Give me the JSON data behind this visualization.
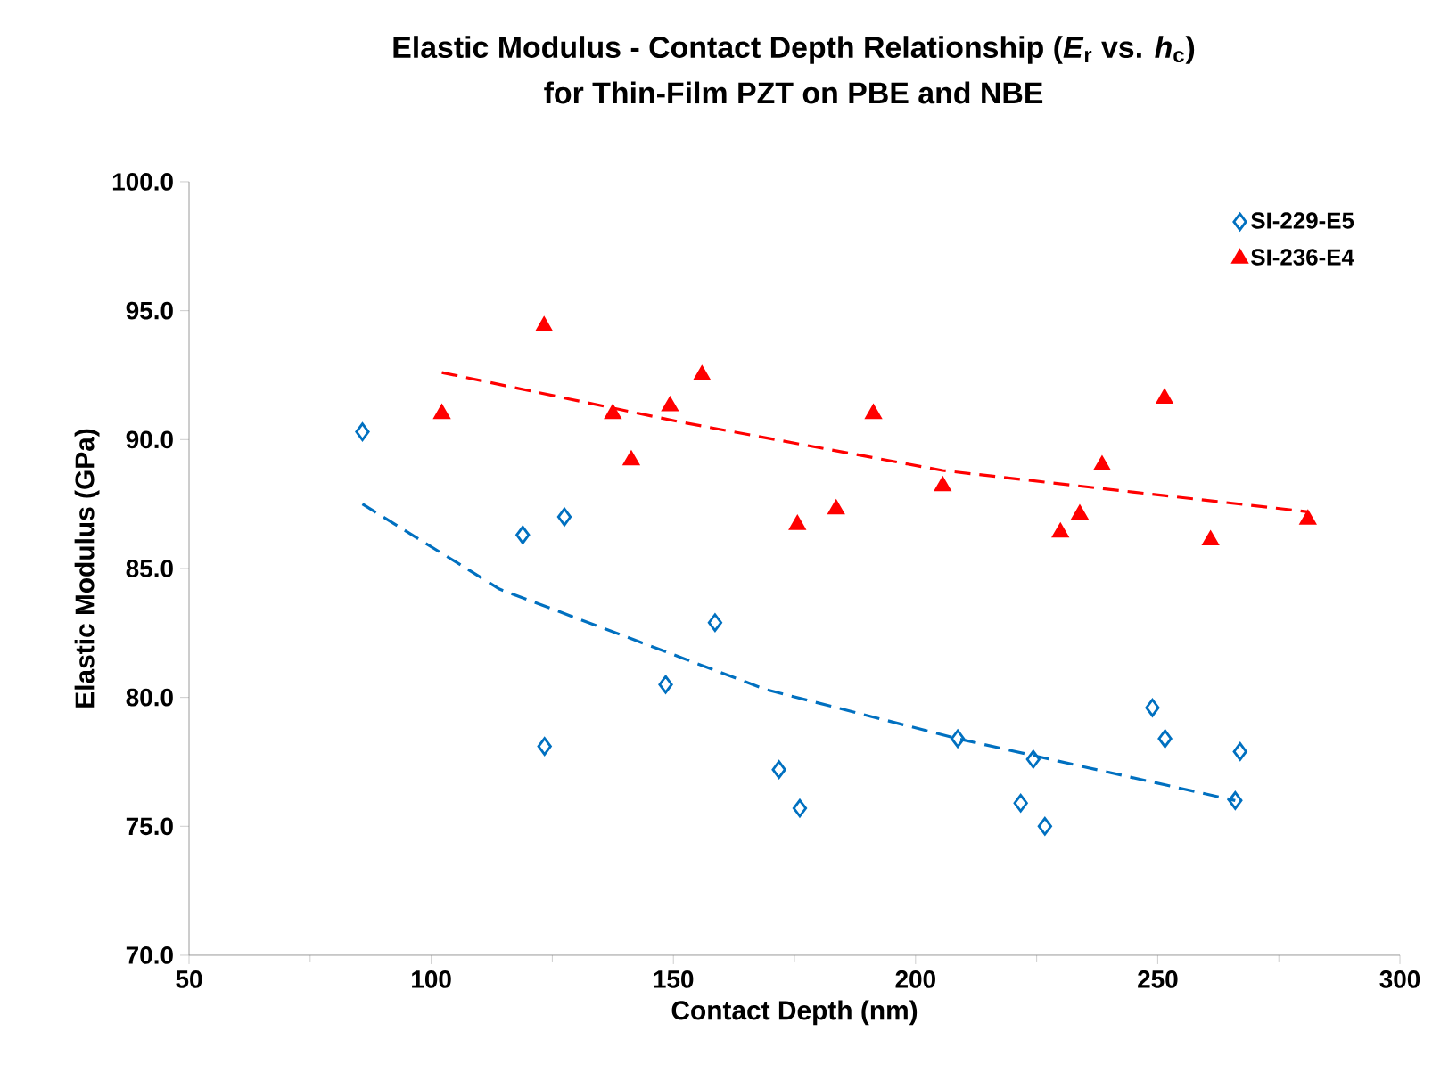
{
  "chart_data": {
    "type": "scatter",
    "title": "Elastic Modulus - Contact Depth Relationship (*E*$_{r}$ vs. *h*$_{c}$)",
    "subtitle": "for Thin-Film PZT on PBE and NBE",
    "xlabel": "Contact Depth (nm)",
    "ylabel": "Elastic Modulus (GPa)",
    "xlim": [
      50,
      300
    ],
    "xticks": [
      50,
      100,
      150,
      200,
      250,
      300
    ],
    "ylim": [
      70,
      100
    ],
    "yticks": [
      {
        "value": 70,
        "label": "70.0"
      },
      {
        "value": 75,
        "label": "75.0"
      },
      {
        "value": 80,
        "label": "80.0"
      },
      {
        "value": 85,
        "label": "85.0"
      },
      {
        "value": 90,
        "label": "90.0"
      },
      {
        "value": 95,
        "label": "95.0"
      },
      {
        "value": 100,
        "label": "100.0"
      }
    ],
    "grid": false,
    "legend": "top right",
    "series": [
      {
        "name": "SI-229-E5",
        "color": "#0070c0",
        "marker": "diamond",
        "x": [
          85.8,
          118.9,
          127.5,
          123.4,
          158.6,
          148.4,
          171.8,
          176.1,
          208.7,
          221.7,
          224.3,
          226.7,
          248.9,
          251.5,
          266.0,
          267.0
        ],
        "values": [
          90.3,
          86.3,
          87.0,
          78.1,
          82.9,
          80.5,
          77.2,
          75.7,
          78.4,
          75.9,
          77.6,
          75.0,
          79.6,
          78.4,
          76.0,
          77.9
        ]
      },
      {
        "name": "SI-236-E4",
        "color": "#ff0000",
        "marker": "triangle",
        "x": [
          102.2,
          123.3,
          137.5,
          141.3,
          149.3,
          155.9,
          175.6,
          183.6,
          191.3,
          205.6,
          229.9,
          233.9,
          238.5,
          251.4,
          260.9,
          281.0
        ],
        "values": [
          91.0,
          94.4,
          91.0,
          89.2,
          91.3,
          92.5,
          86.7,
          87.3,
          91.0,
          88.2,
          86.4,
          87.1,
          89.0,
          91.6,
          86.1,
          86.9
        ]
      },
      {
        "type": "line",
        "color": "#0070c0",
        "line_style": "dashed",
        "x": [
          85.8,
          114.1,
          169.2,
          208.7,
          266.0
        ],
        "values": [
          87.5,
          84.2,
          80.3,
          78.4,
          76.0
        ]
      },
      {
        "type": "line",
        "color": "#ff0000",
        "line_style": "dashed",
        "x": [
          102.2,
          150.9,
          205.6,
          238.5,
          281.0
        ],
        "values": [
          92.6,
          90.7,
          88.8,
          88.1,
          87.2
        ]
      }
    ]
  }
}
